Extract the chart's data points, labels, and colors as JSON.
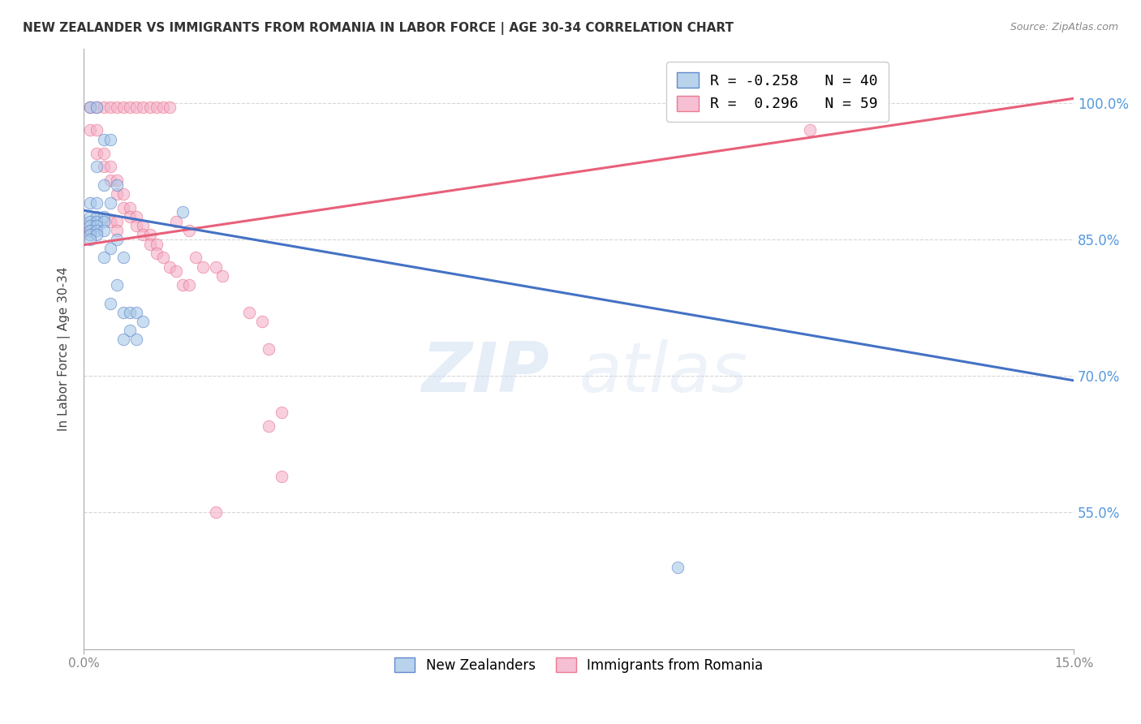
{
  "title": "NEW ZEALANDER VS IMMIGRANTS FROM ROMANIA IN LABOR FORCE | AGE 30-34 CORRELATION CHART",
  "source": "Source: ZipAtlas.com",
  "ylabel": "In Labor Force | Age 30-34",
  "x_min": 0.0,
  "x_max": 0.15,
  "y_min": 0.4,
  "y_max": 1.06,
  "ytick_labels": [
    "55.0%",
    "70.0%",
    "85.0%",
    "100.0%"
  ],
  "ytick_values": [
    0.55,
    0.7,
    0.85,
    1.0
  ],
  "xtick_labels": [
    "0.0%",
    "15.0%"
  ],
  "xtick_values": [
    0.0,
    0.15
  ],
  "blue_scatter": [
    [
      0.001,
      0.995
    ],
    [
      0.002,
      0.995
    ],
    [
      0.003,
      0.96
    ],
    [
      0.004,
      0.96
    ],
    [
      0.002,
      0.93
    ],
    [
      0.003,
      0.91
    ],
    [
      0.005,
      0.91
    ],
    [
      0.001,
      0.89
    ],
    [
      0.002,
      0.89
    ],
    [
      0.004,
      0.89
    ],
    [
      0.001,
      0.875
    ],
    [
      0.002,
      0.875
    ],
    [
      0.003,
      0.875
    ],
    [
      0.001,
      0.87
    ],
    [
      0.002,
      0.87
    ],
    [
      0.003,
      0.87
    ],
    [
      0.001,
      0.865
    ],
    [
      0.002,
      0.865
    ],
    [
      0.001,
      0.86
    ],
    [
      0.002,
      0.86
    ],
    [
      0.003,
      0.86
    ],
    [
      0.001,
      0.855
    ],
    [
      0.002,
      0.855
    ],
    [
      0.001,
      0.85
    ],
    [
      0.005,
      0.85
    ],
    [
      0.004,
      0.84
    ],
    [
      0.003,
      0.83
    ],
    [
      0.006,
      0.83
    ],
    [
      0.005,
      0.8
    ],
    [
      0.004,
      0.78
    ],
    [
      0.006,
      0.77
    ],
    [
      0.007,
      0.77
    ],
    [
      0.008,
      0.77
    ],
    [
      0.009,
      0.76
    ],
    [
      0.007,
      0.75
    ],
    [
      0.006,
      0.74
    ],
    [
      0.008,
      0.74
    ],
    [
      0.015,
      0.88
    ],
    [
      0.09,
      0.49
    ]
  ],
  "pink_scatter": [
    [
      0.001,
      0.995
    ],
    [
      0.002,
      0.995
    ],
    [
      0.003,
      0.995
    ],
    [
      0.004,
      0.995
    ],
    [
      0.005,
      0.995
    ],
    [
      0.006,
      0.995
    ],
    [
      0.007,
      0.995
    ],
    [
      0.008,
      0.995
    ],
    [
      0.009,
      0.995
    ],
    [
      0.01,
      0.995
    ],
    [
      0.011,
      0.995
    ],
    [
      0.012,
      0.995
    ],
    [
      0.013,
      0.995
    ],
    [
      0.001,
      0.97
    ],
    [
      0.002,
      0.97
    ],
    [
      0.002,
      0.945
    ],
    [
      0.003,
      0.945
    ],
    [
      0.003,
      0.93
    ],
    [
      0.004,
      0.93
    ],
    [
      0.004,
      0.915
    ],
    [
      0.005,
      0.915
    ],
    [
      0.005,
      0.9
    ],
    [
      0.006,
      0.9
    ],
    [
      0.006,
      0.885
    ],
    [
      0.007,
      0.885
    ],
    [
      0.007,
      0.875
    ],
    [
      0.008,
      0.875
    ],
    [
      0.008,
      0.865
    ],
    [
      0.009,
      0.865
    ],
    [
      0.009,
      0.855
    ],
    [
      0.01,
      0.855
    ],
    [
      0.01,
      0.845
    ],
    [
      0.011,
      0.845
    ],
    [
      0.011,
      0.835
    ],
    [
      0.012,
      0.83
    ],
    [
      0.013,
      0.82
    ],
    [
      0.014,
      0.815
    ],
    [
      0.015,
      0.8
    ],
    [
      0.016,
      0.8
    ],
    [
      0.004,
      0.87
    ],
    [
      0.005,
      0.87
    ],
    [
      0.014,
      0.87
    ],
    [
      0.016,
      0.86
    ],
    [
      0.017,
      0.83
    ],
    [
      0.018,
      0.82
    ],
    [
      0.02,
      0.82
    ],
    [
      0.021,
      0.81
    ],
    [
      0.025,
      0.77
    ],
    [
      0.027,
      0.76
    ],
    [
      0.028,
      0.73
    ],
    [
      0.03,
      0.66
    ],
    [
      0.028,
      0.645
    ],
    [
      0.02,
      0.55
    ],
    [
      0.11,
      0.97
    ],
    [
      0.03,
      0.59
    ],
    [
      0.005,
      0.86
    ],
    [
      0.001,
      0.86
    ]
  ],
  "blue_line": {
    "x": [
      0.0,
      0.15
    ],
    "y": [
      0.882,
      0.695
    ]
  },
  "pink_line": {
    "x": [
      0.0,
      0.15
    ],
    "y": [
      0.844,
      1.005
    ]
  },
  "blue_color": "#a8c8e8",
  "pink_color": "#f4b0c8",
  "blue_line_color": "#4472c4",
  "pink_line_color": "#e8607a",
  "watermark_zip": "ZIP",
  "watermark_atlas": "atlas",
  "background_color": "#ffffff",
  "grid_color": "#cccccc",
  "title_color": "#333333",
  "source_color": "#888888",
  "ylabel_color": "#444444",
  "tick_color": "#888888",
  "right_tick_color": "#5599dd"
}
